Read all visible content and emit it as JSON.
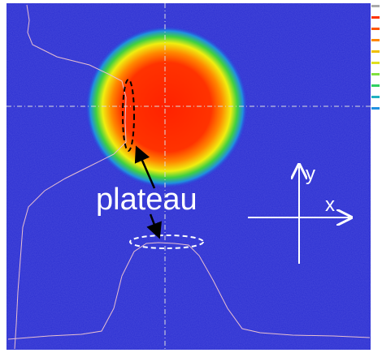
{
  "annotation": "plateau",
  "axes": {
    "y": "y",
    "x": "x"
  }
}
